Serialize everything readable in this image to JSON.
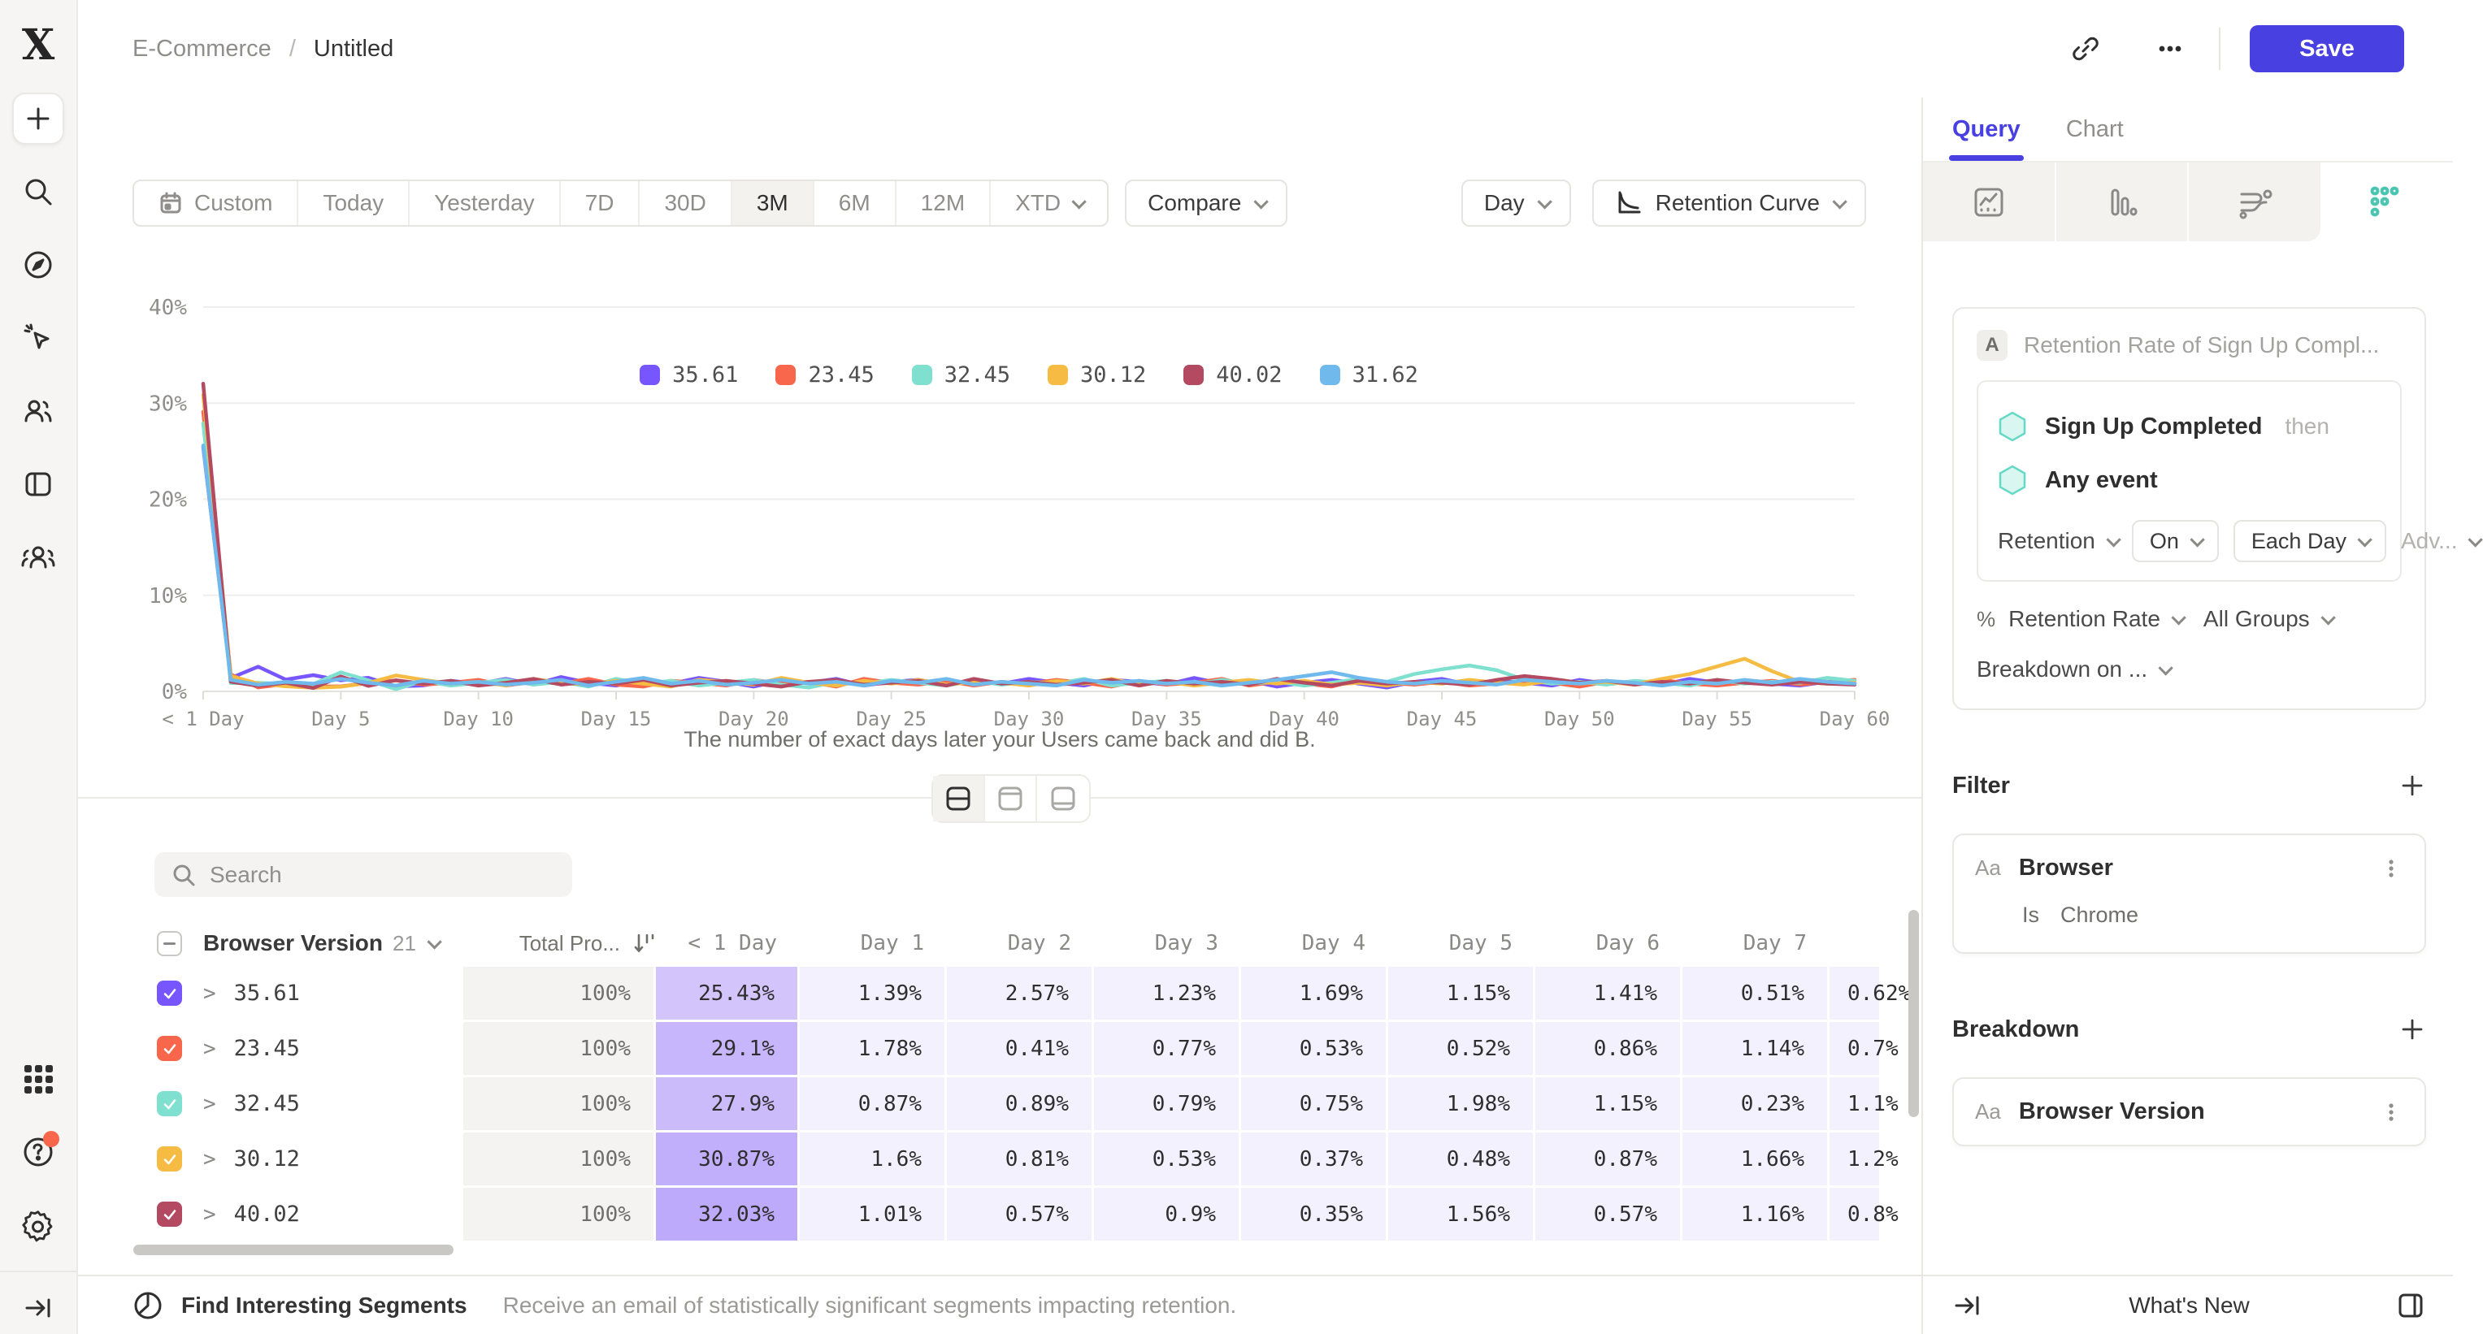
{
  "header": {
    "breadcrumb": {
      "project": "E-Commerce",
      "separator": "/",
      "title": "Untitled"
    },
    "save_label": "Save"
  },
  "toolbar": {
    "ranges": [
      "Custom",
      "Today",
      "Yesterday",
      "7D",
      "30D",
      "3M",
      "6M",
      "12M",
      "XTD"
    ],
    "active_range": "3M",
    "compare_label": "Compare",
    "granularity_label": "Day",
    "chart_type_label": "Retention Curve"
  },
  "chart_data": {
    "type": "line",
    "x_tick_labels": [
      "< 1 Day",
      "Day 5",
      "Day 10",
      "Day 15",
      "Day 20",
      "Day 25",
      "Day 30",
      "Day 35",
      "Day 40",
      "Day 45",
      "Day 50",
      "Day 55",
      "Day 60"
    ],
    "y_tick_labels": [
      "0%",
      "10%",
      "20%",
      "30%",
      "40%"
    ],
    "ylim": [
      0,
      40
    ],
    "x_days": [
      0,
      60
    ],
    "grid": true,
    "legend_position": "top-center",
    "caption": "The number of exact days later your Users came back and did B.",
    "series": [
      {
        "name": "35.61",
        "color": "#7856ff",
        "values": [
          25.43,
          1.39,
          2.57,
          1.23,
          1.69,
          1.15,
          1.41,
          0.51,
          0.62,
          1.1,
          0.8,
          1.3,
          0.7,
          1.5,
          0.9,
          0.6,
          1.2,
          0.8,
          1.4,
          1.0,
          0.5,
          1.1,
          0.9,
          1.3,
          0.6,
          1.0,
          1.2,
          0.7,
          1.1,
          0.8,
          1.3,
          0.9,
          0.6,
          1.2,
          1.0,
          0.7,
          1.4,
          0.8,
          1.1,
          0.5,
          0.9,
          1.2,
          0.8,
          0.4,
          1.0,
          1.3,
          0.7,
          1.1,
          0.9,
          0.6,
          1.2,
          0.8,
          1.0,
          0.7,
          1.3,
          0.9,
          1.1,
          0.8,
          0.6,
          1.0,
          0.9
        ]
      },
      {
        "name": "23.45",
        "color": "#f8674b",
        "values": [
          29.1,
          1.78,
          0.41,
          0.77,
          0.53,
          0.52,
          0.86,
          1.14,
          0.7,
          0.9,
          1.2,
          0.6,
          1.0,
          0.8,
          1.3,
          0.7,
          0.5,
          1.1,
          0.9,
          0.6,
          1.2,
          0.8,
          1.0,
          0.5,
          1.3,
          0.9,
          0.7,
          1.1,
          0.6,
          1.0,
          0.8,
          1.2,
          0.9,
          0.5,
          1.1,
          0.7,
          0.9,
          1.3,
          0.6,
          1.0,
          0.8,
          0.5,
          1.2,
          0.9,
          0.7,
          1.0,
          0.6,
          0.8,
          1.1,
          0.9,
          0.5,
          1.0,
          0.7,
          1.2,
          0.8,
          0.6,
          0.9,
          1.1,
          0.7,
          1.0,
          1.2
        ]
      },
      {
        "name": "32.45",
        "color": "#7fe0cf",
        "values": [
          27.9,
          0.87,
          0.89,
          0.79,
          0.75,
          1.98,
          1.15,
          0.23,
          1.1,
          0.6,
          0.9,
          1.2,
          0.7,
          1.0,
          0.5,
          1.3,
          0.8,
          1.1,
          0.6,
          0.9,
          1.2,
          0.7,
          0.4,
          1.0,
          0.8,
          1.2,
          0.9,
          0.6,
          1.1,
          0.7,
          1.0,
          0.8,
          1.3,
          0.6,
          0.9,
          1.1,
          0.7,
          1.2,
          0.8,
          1.0,
          0.6,
          0.9,
          1.3,
          1.0,
          1.8,
          2.3,
          2.7,
          2.2,
          1.2,
          0.8,
          1.0,
          0.7,
          1.1,
          0.9,
          0.6,
          1.2,
          0.8,
          1.0,
          0.9,
          1.4,
          1.1
        ]
      },
      {
        "name": "30.12",
        "color": "#f6bb42",
        "values": [
          30.87,
          1.6,
          0.81,
          0.53,
          0.37,
          0.48,
          0.87,
          1.66,
          1.2,
          0.8,
          1.0,
          0.6,
          1.3,
          0.9,
          0.7,
          1.1,
          0.8,
          0.5,
          1.2,
          1.0,
          0.7,
          1.4,
          0.9,
          0.6,
          1.1,
          0.8,
          1.2,
          0.7,
          1.0,
          0.9,
          0.6,
          1.1,
          0.8,
          1.3,
          0.7,
          1.0,
          0.6,
          0.9,
          1.2,
          0.8,
          1.1,
          0.7,
          0.9,
          0.6,
          1.0,
          0.8,
          1.2,
          0.9,
          0.7,
          1.1,
          0.8,
          1.0,
          0.7,
          1.3,
          1.8,
          2.6,
          3.4,
          2.1,
          1.0,
          0.8,
          0.9
        ]
      },
      {
        "name": "40.02",
        "color": "#b34a62",
        "values": [
          32.03,
          1.01,
          0.57,
          0.9,
          0.35,
          1.56,
          0.57,
          1.16,
          0.8,
          1.1,
          0.6,
          0.9,
          1.3,
          0.7,
          1.0,
          0.8,
          1.2,
          0.6,
          0.9,
          1.1,
          0.8,
          0.5,
          1.0,
          1.2,
          0.7,
          0.9,
          1.1,
          0.6,
          1.3,
          0.8,
          1.0,
          0.7,
          0.9,
          1.2,
          0.6,
          1.1,
          0.8,
          1.0,
          0.7,
          1.3,
          0.9,
          0.6,
          1.1,
          0.8,
          1.0,
          0.9,
          0.7,
          1.2,
          1.6,
          1.3,
          0.9,
          1.1,
          0.7,
          1.0,
          0.8,
          1.2,
          0.9,
          0.7,
          1.0,
          0.8,
          0.7
        ]
      },
      {
        "name": "31.62",
        "color": "#6fb9ed",
        "values": [
          25.6,
          1.2,
          0.7,
          1.0,
          0.8,
          1.3,
          0.9,
          0.6,
          1.1,
          0.8,
          1.0,
          0.7,
          0.9,
          1.2,
          0.6,
          1.0,
          1.4,
          0.8,
          1.1,
          0.7,
          0.9,
          1.2,
          0.8,
          1.0,
          0.6,
          1.1,
          0.9,
          1.3,
          0.7,
          1.0,
          0.8,
          0.6,
          1.2,
          0.9,
          1.1,
          0.8,
          1.0,
          0.6,
          0.9,
          1.2,
          1.6,
          2.0,
          1.4,
          1.0,
          0.8,
          1.1,
          0.9,
          0.7,
          1.2,
          1.0,
          0.8,
          1.1,
          0.9,
          0.6,
          1.0,
          0.8,
          1.2,
          0.9,
          1.3,
          1.0,
          0.8
        ]
      }
    ]
  },
  "search": {
    "placeholder": "Search"
  },
  "table": {
    "group_label": "Browser Version",
    "group_count": "21",
    "total_label": "Total Pro...",
    "day_headers": [
      "< 1 Day",
      "Day 1",
      "Day 2",
      "Day 3",
      "Day 4",
      "Day 5",
      "Day 6",
      "Day 7"
    ],
    "rows": [
      {
        "name": "35.61",
        "color": "#7856ff",
        "total": "100%",
        "first": 25.43,
        "cells": [
          "25.43%",
          "1.39%",
          "2.57%",
          "1.23%",
          "1.69%",
          "1.15%",
          "1.41%",
          "0.51%"
        ],
        "cut": "0.62%"
      },
      {
        "name": "23.45",
        "color": "#f8674b",
        "total": "100%",
        "first": 29.1,
        "cells": [
          "29.1%",
          "1.78%",
          "0.41%",
          "0.77%",
          "0.53%",
          "0.52%",
          "0.86%",
          "1.14%"
        ],
        "cut": "0.7%"
      },
      {
        "name": "32.45",
        "color": "#7fe0cf",
        "total": "100%",
        "first": 27.9,
        "cells": [
          "27.9%",
          "0.87%",
          "0.89%",
          "0.79%",
          "0.75%",
          "1.98%",
          "1.15%",
          "0.23%"
        ],
        "cut": "1.1%"
      },
      {
        "name": "30.12",
        "color": "#f6bb42",
        "total": "100%",
        "first": 30.87,
        "cells": [
          "30.87%",
          "1.6%",
          "0.81%",
          "0.53%",
          "0.37%",
          "0.48%",
          "0.87%",
          "1.66%"
        ],
        "cut": "1.2%"
      },
      {
        "name": "40.02",
        "color": "#b34a62",
        "total": "100%",
        "first": 32.03,
        "cells": [
          "32.03%",
          "1.01%",
          "0.57%",
          "0.9%",
          "0.35%",
          "1.56%",
          "0.57%",
          "1.16%"
        ],
        "cut": "0.8%"
      }
    ]
  },
  "panel": {
    "tabs": {
      "query": "Query",
      "chart": "Chart"
    },
    "active_tab": "Query",
    "query": {
      "badge": "A",
      "title": "Retention Rate of Sign Up Compl...",
      "event1": "Sign Up Completed",
      "then_label": "then",
      "event2": "Any event",
      "retention_dd": "Retention",
      "on_dd": "On",
      "each_day_dd": "Each Day",
      "adv_dd": "Adv...",
      "percent_sign": "%",
      "measure_dd": "Retention Rate",
      "groups_dd": "All Groups",
      "breakdown_dd": "Breakdown on ..."
    },
    "filter": {
      "heading": "Filter",
      "prop_type": "Aa",
      "name": "Browser",
      "operator": "Is",
      "value": "Chrome"
    },
    "breakdown": {
      "heading": "Breakdown",
      "prop_type": "Aa",
      "name": "Browser Version"
    }
  },
  "footer": {
    "segments_title": "Find Interesting Segments",
    "segments_desc": "Receive an email of statistically significant segments impacting retention.",
    "whats_new": "What's New"
  },
  "colors": {
    "accent": "#4840e0",
    "active_cell": "#7044f5",
    "retention_icon": "#49c5b1",
    "notification": "#f8674b"
  }
}
